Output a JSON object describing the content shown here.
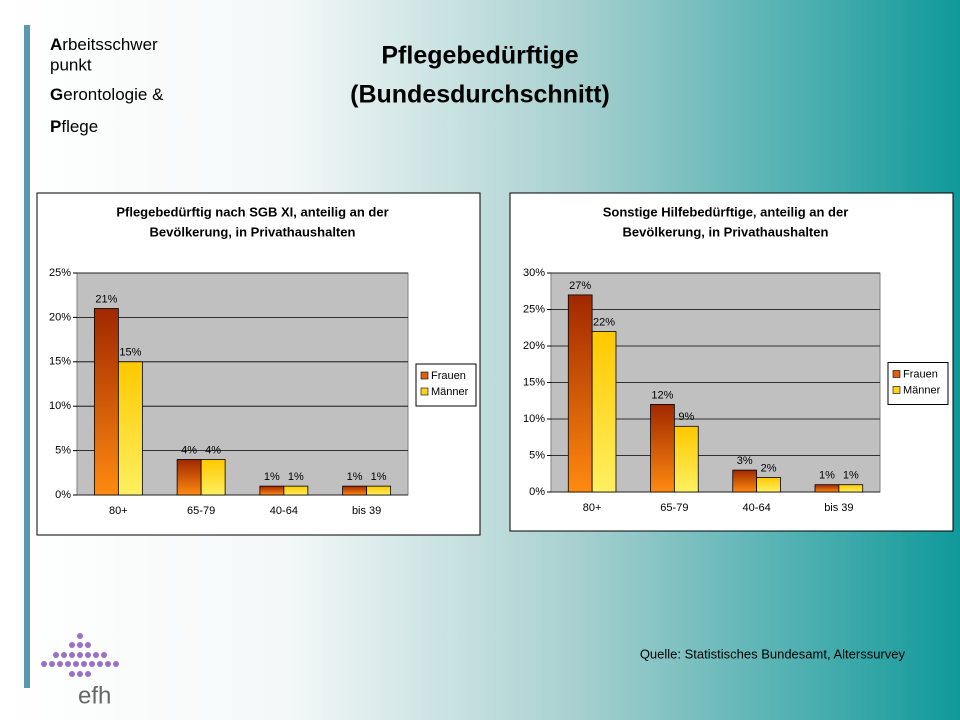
{
  "slide": {
    "side_lines": [
      "Arbeitsschwer",
      "punkt",
      "Gerontologie &",
      "Pflege"
    ],
    "title": [
      "Pflegebedürftige",
      "(Bundesdurchschnitt)"
    ],
    "source": "Quelle: Statistisches Bundesamt, Alterssurvey",
    "logo": "efh"
  },
  "chart_data": [
    {
      "type": "bar",
      "title": [
        "Pflegebedürftig nach SGB XI, anteilig an der",
        "Bevölkerung, in Privathaushalten"
      ],
      "categories": [
        "80+",
        "65-79",
        "40-64",
        "bis 39"
      ],
      "series": [
        {
          "name": "Frauen",
          "color": "#e06010",
          "values": [
            21,
            4,
            1,
            1
          ],
          "value_labels": [
            "21%",
            "4%",
            "1%",
            "1%"
          ]
        },
        {
          "name": "Männer",
          "color": "#ffd21a",
          "values": [
            15,
            4,
            1,
            1
          ],
          "value_labels": [
            "15%",
            "4%",
            "1%",
            "1%"
          ]
        }
      ],
      "ylim": [
        0,
        25
      ],
      "yticks": [
        {
          "value": 0,
          "label": "0%"
        },
        {
          "value": 5,
          "label": "5%"
        },
        {
          "value": 10,
          "label": "10%"
        },
        {
          "value": 15,
          "label": "15%"
        },
        {
          "value": 20,
          "label": "20%"
        },
        {
          "value": 25,
          "label": "25%"
        }
      ],
      "grid": true,
      "legend": "right"
    },
    {
      "type": "bar",
      "title": [
        "Sonstige Hilfebedürftige, anteilig an der",
        "Bevölkerung, in Privathaushalten"
      ],
      "categories": [
        "80+",
        "65-79",
        "40-64",
        "bis 39"
      ],
      "series": [
        {
          "name": "Frauen",
          "color": "#e06010",
          "values": [
            27,
            12,
            3,
            1
          ],
          "value_labels": [
            "27%",
            "12%",
            "3%",
            "1%"
          ]
        },
        {
          "name": "Männer",
          "color": "#ffd21a",
          "values": [
            22,
            9,
            2,
            1
          ],
          "value_labels": [
            "22%",
            "9%",
            "2%",
            "1%"
          ]
        }
      ],
      "ylim": [
        0,
        30
      ],
      "yticks": [
        {
          "value": 0,
          "label": "0%"
        },
        {
          "value": 5,
          "label": "5%"
        },
        {
          "value": 10,
          "label": "10%"
        },
        {
          "value": 15,
          "label": "15%"
        },
        {
          "value": 20,
          "label": "20%"
        },
        {
          "value": 25,
          "label": "25%"
        },
        {
          "value": 30,
          "label": "30%"
        }
      ],
      "grid": true,
      "legend": "right"
    }
  ]
}
